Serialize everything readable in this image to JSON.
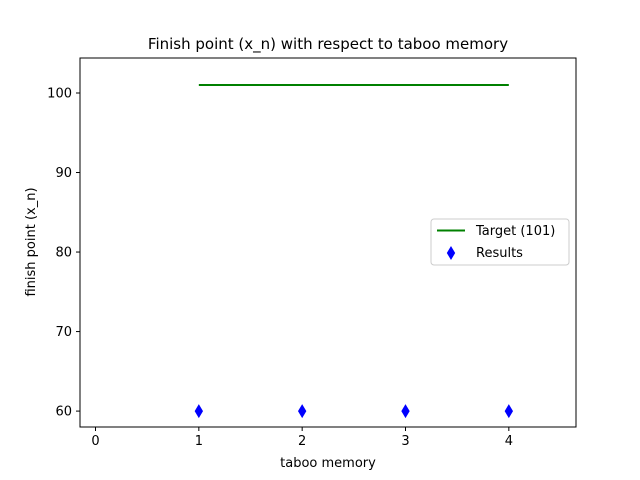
{
  "chart_data": {
    "type": "scatter",
    "title": "Finish point (x_n) with respect to taboo memory",
    "xlabel": "taboo memory",
    "ylabel": "finish point (x_n)",
    "xlim": [
      -0.15,
      4.65
    ],
    "ylim": [
      58.0,
      104.4
    ],
    "xticks": [
      0,
      1,
      2,
      3,
      4
    ],
    "yticks": [
      60,
      70,
      80,
      90,
      100
    ],
    "grid": false,
    "legend_position": "center-right",
    "series": [
      {
        "name": "Target (101)",
        "kind": "line",
        "color": "#008000",
        "x": [
          1,
          4
        ],
        "y": [
          101,
          101
        ]
      },
      {
        "name": "Results",
        "kind": "scatter",
        "marker": "thin-diamond",
        "color": "#0000ff",
        "x": [
          1,
          2,
          3,
          4
        ],
        "y": [
          60,
          60,
          60,
          60
        ]
      }
    ]
  }
}
